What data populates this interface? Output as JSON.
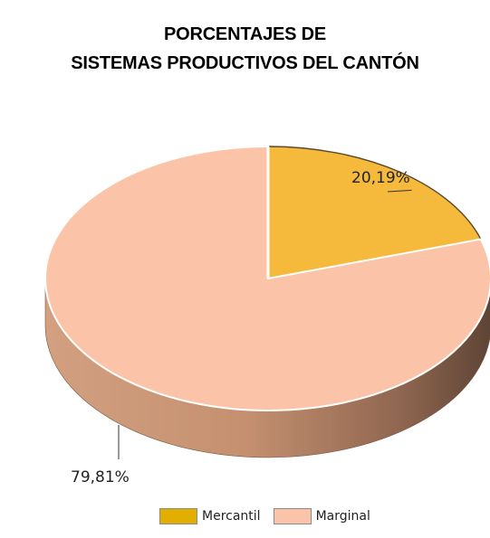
{
  "chart_data": {
    "type": "pie",
    "title_line1": "PORCENTAJES DE",
    "title_line2": "SISTEMAS PRODUCTIVOS DEL CANTÓN",
    "slices": [
      {
        "name": "Mercantil",
        "value": 20.19,
        "label": "20,19%",
        "color": "#f5ba3c",
        "side_color": "#b8862a",
        "legend_color": "#e2ae00"
      },
      {
        "name": "Marginal",
        "value": 79.81,
        "label": "79,81%",
        "color": "#fbc4a8",
        "side_color": "#c49878",
        "legend_color": "#fbc4a8"
      }
    ],
    "legend_position": "bottom"
  }
}
